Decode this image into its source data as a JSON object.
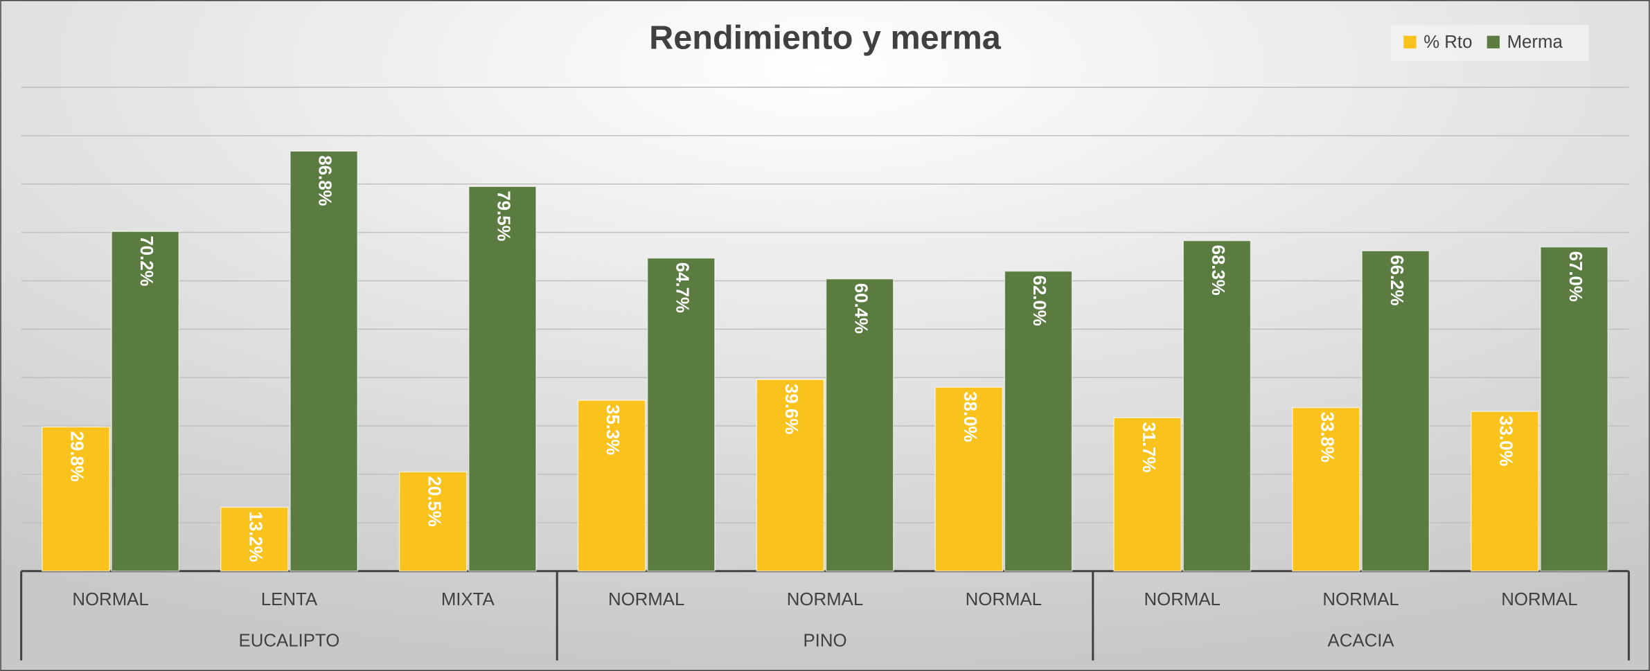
{
  "chart_data": {
    "type": "bar",
    "title": "Rendimiento y merma",
    "categories": [
      "NORMAL",
      "LENTA",
      "MIXTA",
      "NORMAL",
      "NORMAL",
      "NORMAL",
      "NORMAL",
      "NORMAL",
      "NORMAL"
    ],
    "groups": [
      {
        "label": "EUCALIPTO",
        "count": 3
      },
      {
        "label": "PINO",
        "count": 3
      },
      {
        "label": "ACACIA",
        "count": 3
      }
    ],
    "series": [
      {
        "name": "% Rto",
        "color": "#f9c21c",
        "values": [
          29.8,
          13.2,
          20.5,
          35.3,
          39.6,
          38.0,
          31.7,
          33.8,
          33.0
        ],
        "value_labels": [
          "29.8%",
          "13.2%",
          "20.5%",
          "35.3%",
          "39.6%",
          "38.0%",
          "31.7%",
          "33.8%",
          "33.0%"
        ]
      },
      {
        "name": "Merma",
        "color": "#5a7c40",
        "values": [
          70.2,
          86.8,
          79.5,
          64.7,
          60.4,
          62.0,
          68.3,
          66.2,
          67.0
        ],
        "value_labels": [
          "70.2%",
          "86.8%",
          "79.5%",
          "64.7%",
          "60.4%",
          "62.0%",
          "68.3%",
          "66.2%",
          "67.0%"
        ]
      }
    ],
    "ylim": [
      0,
      100
    ],
    "yticks": [
      0,
      10,
      20,
      30,
      40,
      50,
      60,
      70,
      80,
      90,
      100
    ],
    "grid": true,
    "legend": "top-right"
  }
}
